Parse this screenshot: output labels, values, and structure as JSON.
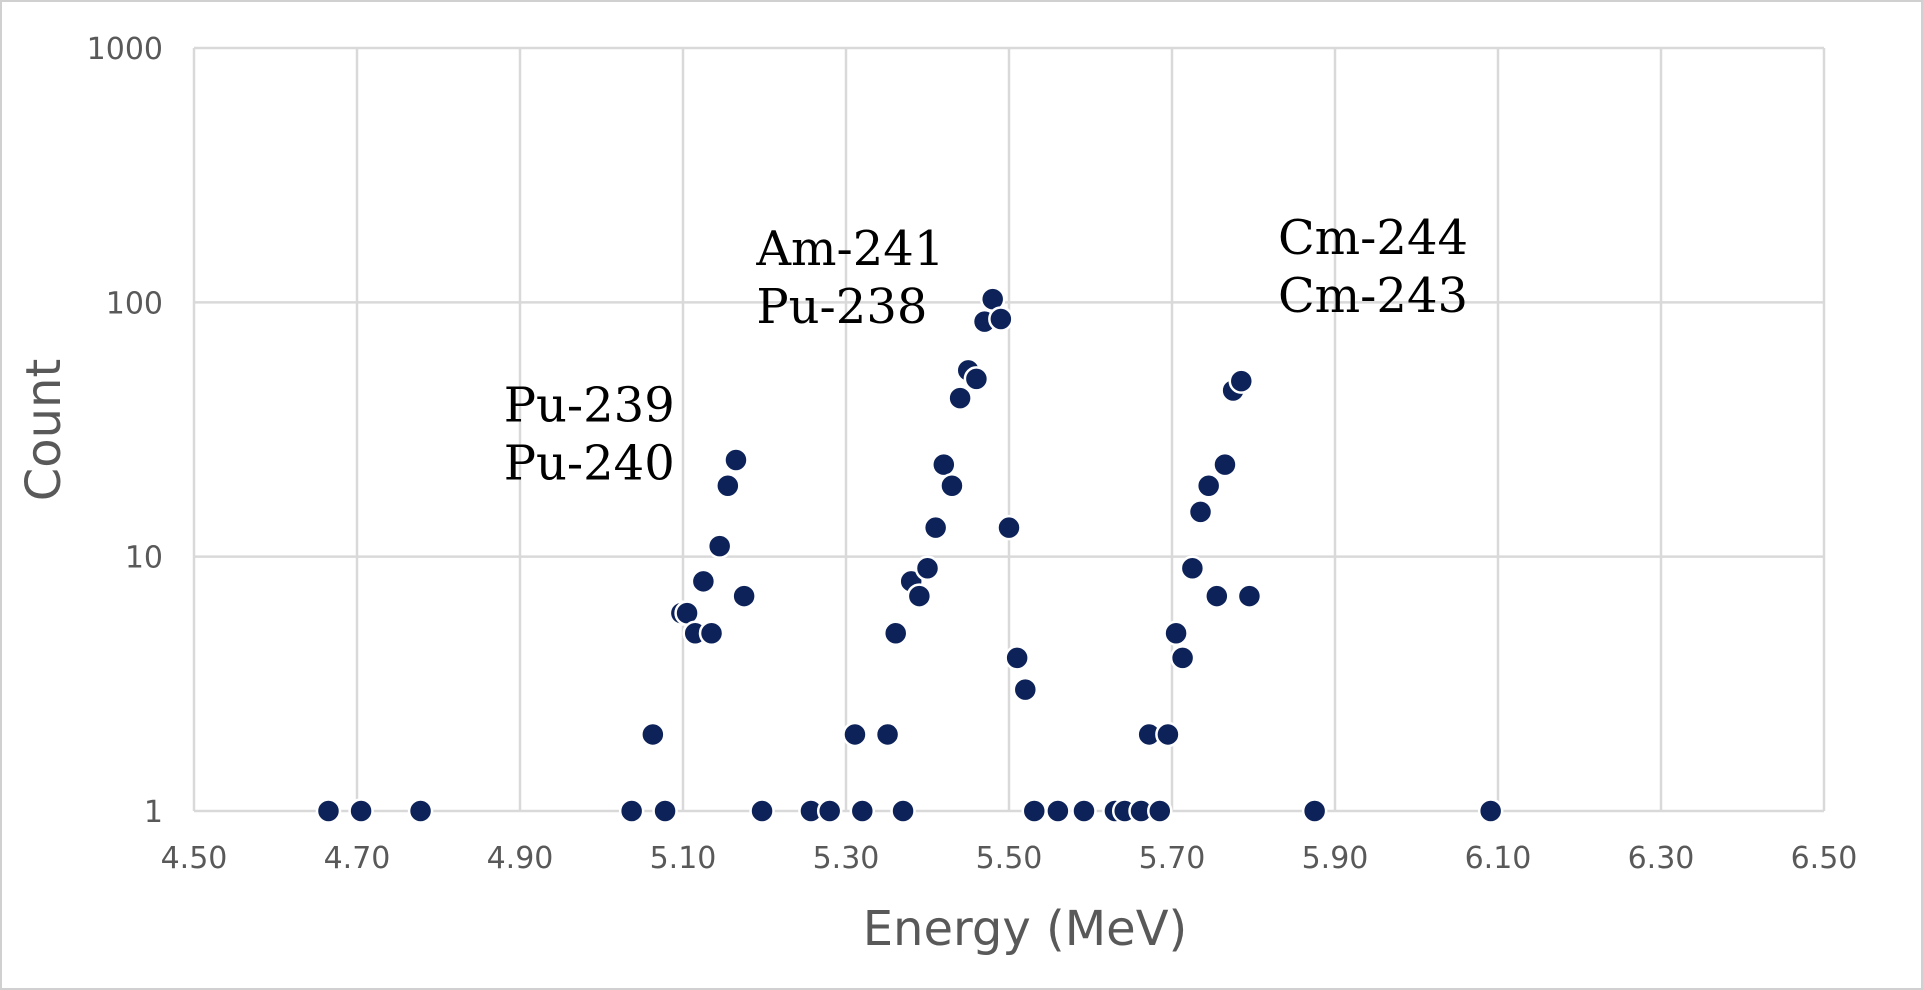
{
  "chart_data": {
    "type": "scatter",
    "title": "",
    "xlabel": "Energy (MeV)",
    "ylabel": "Count",
    "xlim": [
      4.5,
      6.5
    ],
    "ylim": [
      1,
      1000
    ],
    "y_scale": "log",
    "grid": true,
    "x_ticks": [
      "4.50",
      "4.70",
      "4.90",
      "5.10",
      "5.30",
      "5.50",
      "5.70",
      "5.90",
      "6.10",
      "6.30",
      "6.50"
    ],
    "y_ticks": [
      "1",
      "10",
      "100",
      "1000"
    ],
    "colors": {
      "marker": "#0d2259",
      "grid": "#d9d9d9",
      "frame": "#d0d0d0"
    },
    "annotations": [
      {
        "lines": [
          "Pu-239",
          "Pu-240"
        ],
        "x": 4.88,
        "y": 34
      },
      {
        "lines": [
          "Am-241",
          "Pu-238"
        ],
        "x": 5.19,
        "y": 140
      },
      {
        "lines": [
          "Cm-244",
          "Cm-243"
        ],
        "x": 5.83,
        "y": 155
      }
    ],
    "series": [
      {
        "points": [
          [
            4.665,
            1
          ],
          [
            4.705,
            1
          ],
          [
            4.778,
            1
          ],
          [
            5.037,
            1
          ],
          [
            5.063,
            2
          ],
          [
            5.078,
            1
          ],
          [
            5.098,
            6
          ],
          [
            5.105,
            6
          ],
          [
            5.115,
            5
          ],
          [
            5.125,
            8
          ],
          [
            5.135,
            5
          ],
          [
            5.145,
            11
          ],
          [
            5.155,
            19
          ],
          [
            5.165,
            24
          ],
          [
            5.175,
            7
          ],
          [
            5.197,
            1
          ],
          [
            5.257,
            1
          ],
          [
            5.28,
            1
          ],
          [
            5.311,
            2
          ],
          [
            5.32,
            1
          ],
          [
            5.351,
            2
          ],
          [
            5.361,
            5
          ],
          [
            5.37,
            1
          ],
          [
            5.38,
            8
          ],
          [
            5.39,
            7
          ],
          [
            5.4,
            9
          ],
          [
            5.41,
            13
          ],
          [
            5.42,
            23
          ],
          [
            5.43,
            19
          ],
          [
            5.44,
            42
          ],
          [
            5.45,
            54
          ],
          [
            5.46,
            50
          ],
          [
            5.47,
            84
          ],
          [
            5.48,
            103
          ],
          [
            5.49,
            86
          ],
          [
            5.5,
            13
          ],
          [
            5.51,
            4
          ],
          [
            5.52,
            3
          ],
          [
            5.531,
            1
          ],
          [
            5.56,
            1
          ],
          [
            5.592,
            1
          ],
          [
            5.63,
            1
          ],
          [
            5.642,
            1
          ],
          [
            5.662,
            1
          ],
          [
            5.672,
            2
          ],
          [
            5.685,
            1
          ],
          [
            5.695,
            2
          ],
          [
            5.705,
            5
          ],
          [
            5.713,
            4
          ],
          [
            5.725,
            9
          ],
          [
            5.735,
            15
          ],
          [
            5.745,
            19
          ],
          [
            5.755,
            7
          ],
          [
            5.765,
            23
          ],
          [
            5.775,
            45
          ],
          [
            5.785,
            49
          ],
          [
            5.795,
            7
          ],
          [
            5.875,
            1
          ],
          [
            6.091,
            1
          ]
        ]
      }
    ]
  }
}
